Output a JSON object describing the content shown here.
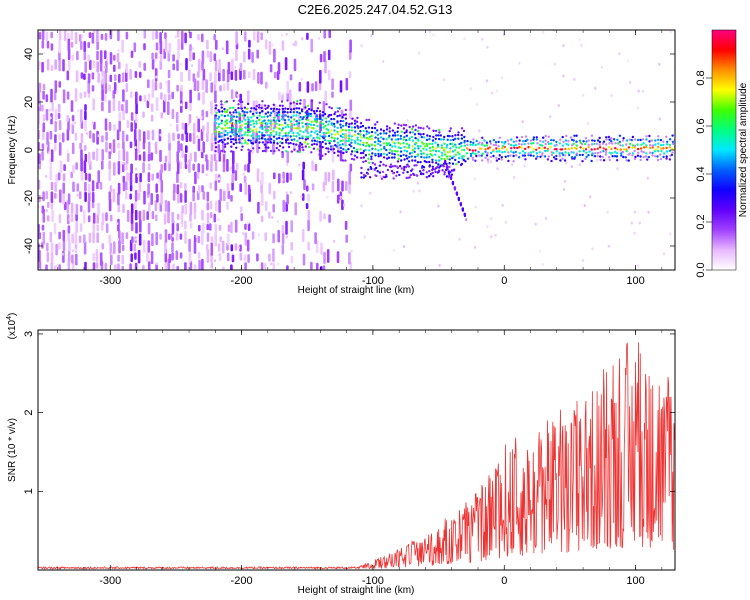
{
  "title": "C2E6.2025.247.04.52.G13",
  "chart_data": [
    {
      "type": "heatmap",
      "name": "spectrogram",
      "xlabel": "Height of straight line (km)",
      "ylabel": "Frequency (Hz)",
      "xlim": [
        -355,
        130
      ],
      "ylim": [
        -50,
        50
      ],
      "xticks": [
        -300,
        -200,
        -100,
        0,
        100
      ],
      "yticks": [
        -40,
        -20,
        0,
        20,
        40
      ],
      "colorbar": {
        "label": "Normalized spectral amplitude",
        "ticks": [
          "0.0",
          "0.2",
          "0.4",
          "0.6",
          "0.8"
        ],
        "tick_values": [
          0.0,
          0.2,
          0.4,
          0.6,
          0.8
        ],
        "range": [
          0,
          1
        ],
        "colors": [
          "#ffffff",
          "#e8b8ff",
          "#a040ff",
          "#6000ff",
          "#1000ff",
          "#0060ff",
          "#00e8ff",
          "#00ff80",
          "#40ff00",
          "#ffff00",
          "#ff9000",
          "#ff0000",
          "#ff0080"
        ]
      },
      "features": {
        "noise_region_x": [
          -355,
          -120
        ],
        "band_x": [
          -220,
          130
        ],
        "band_center_hz": [
          [
            -220,
            10
          ],
          [
            -150,
            10
          ],
          [
            -100,
            3
          ],
          [
            -50,
            0
          ],
          [
            0,
            1
          ],
          [
            130,
            1
          ]
        ],
        "dip_end": {
          "x": -30,
          "y": -27
        }
      }
    },
    {
      "type": "line",
      "name": "snr",
      "xlabel": "Height of straight line (km)",
      "ylabel": "SNR (10 * v/v)",
      "multiplier_label": "(x10",
      "multiplier_exp": "4",
      "multiplier_close": ")",
      "xlim": [
        -355,
        130
      ],
      "ylim": [
        0,
        3.05
      ],
      "xticks": [
        -300,
        -200,
        -100,
        0,
        100
      ],
      "yticks": [
        1,
        2,
        3
      ],
      "color": "#ee3333",
      "envelope": [
        [
          -355,
          0.03
        ],
        [
          -110,
          0.05
        ],
        [
          -90,
          0.2
        ],
        [
          -60,
          0.45
        ],
        [
          -20,
          1.0
        ],
        [
          0,
          1.6
        ],
        [
          40,
          2.0
        ],
        [
          70,
          2.5
        ],
        [
          100,
          3.0
        ],
        [
          130,
          2.4
        ]
      ]
    }
  ]
}
